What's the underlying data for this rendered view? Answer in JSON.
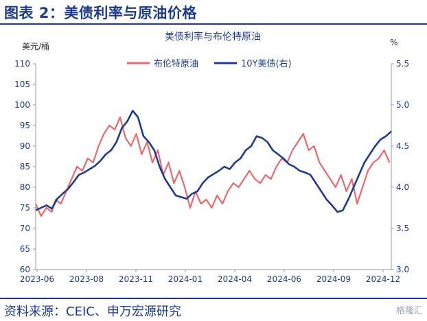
{
  "figure_title": "图表 2：美债利率与原油价格",
  "source": "资料来源：CEIC、申万宏源研究",
  "watermark": "格隆汇",
  "chart_data": {
    "type": "line",
    "title": "美债利率与布伦特原油",
    "y_left_label": "美元/桶",
    "y_right_label": "%",
    "y_left": {
      "min": 60,
      "max": 110,
      "ticks": [
        60,
        65,
        70,
        75,
        80,
        85,
        90,
        95,
        100,
        105,
        110
      ]
    },
    "y_right": {
      "min": 3.0,
      "max": 5.5,
      "ticks": [
        "3.0",
        "3.5",
        "4.0",
        "4.5",
        "5.0",
        "5.5"
      ]
    },
    "x_ticks": [
      "2023-06",
      "2023-08",
      "2023-11",
      "2024-01",
      "2024-04",
      "2024-06",
      "2024-09",
      "2024-12"
    ],
    "legend_position": "top",
    "series": [
      {
        "name": "布伦特原油",
        "axis": "left",
        "color": "#e8696b",
        "x": [
          0,
          0.3,
          0.6,
          0.9,
          1.1,
          1.4,
          1.7,
          2.0,
          2.3,
          2.6,
          2.9,
          3.2,
          3.5,
          3.8,
          4.1,
          4.4,
          4.7,
          5.0,
          5.3,
          5.6,
          5.9,
          6.2,
          6.5,
          6.8,
          7.1,
          7.4,
          7.7,
          8.0,
          8.3,
          8.6,
          8.9,
          9.2,
          9.5,
          9.8,
          10.1,
          10.4,
          10.7,
          11.0,
          11.3,
          11.6,
          11.9,
          12.2,
          12.5,
          12.8,
          13.1,
          13.4,
          13.7,
          14.0,
          14.3,
          14.6,
          14.9,
          15.2,
          15.5,
          15.8,
          16.1,
          16.4,
          16.7,
          17.0,
          17.3,
          17.6,
          17.9,
          18.2,
          18.5,
          18.8,
          19.1,
          19.4,
          19.7
        ],
        "values": [
          76,
          73,
          75,
          74,
          77,
          76,
          79,
          82,
          85,
          84,
          87,
          86,
          90,
          93,
          95,
          94,
          97,
          92,
          90,
          93,
          88,
          91,
          86,
          89,
          83,
          86,
          81,
          84,
          80,
          75,
          79,
          76,
          77,
          75,
          78,
          76,
          79,
          81,
          80,
          82,
          84,
          82,
          81,
          83,
          82,
          85,
          87,
          86,
          89,
          91,
          93,
          89,
          90,
          86,
          84,
          82,
          80,
          83,
          79,
          82,
          76,
          80,
          84,
          86,
          87,
          89,
          86
        ],
        "note": "x = months since 2023-06"
      },
      {
        "name": "10Y美债(右)",
        "axis": "right",
        "color": "#1f3a93",
        "x": [
          0,
          0.3,
          0.6,
          0.9,
          1.2,
          1.5,
          1.8,
          2.1,
          2.4,
          2.7,
          3.0,
          3.3,
          3.6,
          3.9,
          4.2,
          4.5,
          4.8,
          5.1,
          5.4,
          5.7,
          6.0,
          6.3,
          6.6,
          6.9,
          7.2,
          7.5,
          7.8,
          8.1,
          8.4,
          8.7,
          9.0,
          9.3,
          9.6,
          9.9,
          10.2,
          10.5,
          10.8,
          11.1,
          11.4,
          11.7,
          12.0,
          12.3,
          12.6,
          12.9,
          13.2,
          13.5,
          13.8,
          14.1,
          14.4,
          14.7,
          15.0,
          15.3,
          15.6,
          15.9,
          16.2,
          16.5,
          16.8,
          17.1,
          17.4,
          17.7,
          18.0,
          18.3,
          18.6,
          18.9,
          19.2,
          19.5,
          19.8
        ],
        "values": [
          3.72,
          3.75,
          3.78,
          3.74,
          3.86,
          3.92,
          3.98,
          4.06,
          4.15,
          4.18,
          4.22,
          4.26,
          4.32,
          4.4,
          4.45,
          4.55,
          4.72,
          4.8,
          4.93,
          4.85,
          4.62,
          4.55,
          4.45,
          4.25,
          4.1,
          4.0,
          3.9,
          3.88,
          3.86,
          3.92,
          3.95,
          4.05,
          4.12,
          4.16,
          4.2,
          4.25,
          4.22,
          4.3,
          4.35,
          4.45,
          4.5,
          4.62,
          4.6,
          4.55,
          4.45,
          4.4,
          4.35,
          4.28,
          4.25,
          4.2,
          4.18,
          4.15,
          4.05,
          3.95,
          3.85,
          3.78,
          3.7,
          3.72,
          3.85,
          4.0,
          4.15,
          4.3,
          4.4,
          4.5,
          4.58,
          4.62,
          4.68
        ]
      }
    ]
  }
}
